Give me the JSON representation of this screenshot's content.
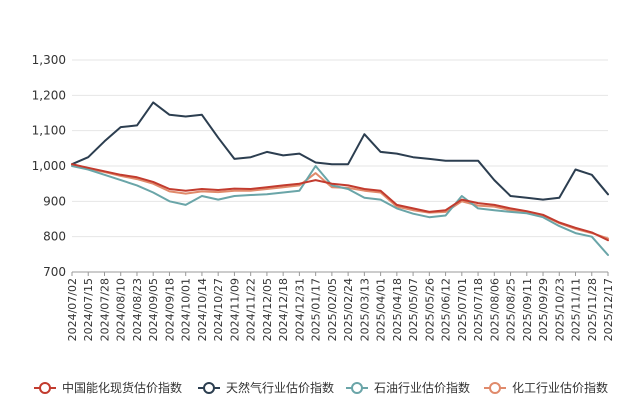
{
  "chart_data": {
    "type": "line",
    "title": "",
    "xlabel": "",
    "ylabel": "",
    "ylim": [
      700,
      1300
    ],
    "yticks": [
      "1,300",
      "1,200",
      "1,100",
      "1,000",
      "900",
      "800",
      "700"
    ],
    "ytick_values": [
      1300,
      1200,
      1100,
      1000,
      900,
      800,
      700
    ],
    "grid": "horizontal",
    "legend_position": "bottom",
    "x": [
      "2024/07/02",
      "2024/07/15",
      "2024/07/28",
      "2024/08/10",
      "2024/08/23",
      "2024/09/05",
      "2024/09/18",
      "2024/10/01",
      "2024/10/14",
      "2024/10/27",
      "2024/11/09",
      "2024/11/22",
      "2024/12/05",
      "2024/12/18",
      "2024/12/31",
      "2025/01/17",
      "2025/02/05",
      "2025/02/24",
      "2025/03/13",
      "2025/04/01",
      "2025/04/18",
      "2025/05/07",
      "2025/05/26",
      "2025/06/12",
      "2025/07/01",
      "2025/07/18",
      "2025/08/06",
      "2025/08/25",
      "2025/09/11",
      "2025/09/29",
      "2025/10/23",
      "2025/11/11",
      "2025/11/28",
      "2025/12/17"
    ],
    "series": [
      {
        "name": "中国能化现货估价指数",
        "color": "#c23b2e",
        "values": [
          1005,
          995,
          985,
          975,
          968,
          955,
          935,
          930,
          935,
          932,
          936,
          935,
          940,
          945,
          950,
          960,
          950,
          945,
          935,
          930,
          890,
          880,
          870,
          875,
          905,
          895,
          890,
          880,
          872,
          862,
          840,
          825,
          812,
          790
        ]
      },
      {
        "name": "天然气行业估价指数",
        "color": "#2c3e50",
        "values": [
          1005,
          1025,
          1070,
          1110,
          1115,
          1180,
          1145,
          1140,
          1145,
          1080,
          1020,
          1025,
          1040,
          1030,
          1035,
          1010,
          1005,
          1005,
          1090,
          1040,
          1035,
          1025,
          1020,
          1015,
          1015,
          1015,
          960,
          915,
          910,
          905,
          910,
          990,
          975,
          920
        ]
      },
      {
        "name": "石油行业估价指数",
        "color": "#6aa5a8",
        "values": [
          1000,
          990,
          975,
          960,
          945,
          925,
          900,
          890,
          915,
          905,
          915,
          918,
          920,
          925,
          930,
          1000,
          945,
          935,
          910,
          905,
          880,
          865,
          855,
          860,
          915,
          880,
          875,
          870,
          866,
          855,
          830,
          810,
          800,
          748
        ]
      },
      {
        "name": "化工行业估价指数",
        "color": "#e08a6b",
        "values": [
          1003,
          992,
          983,
          972,
          963,
          950,
          928,
          922,
          928,
          926,
          930,
          930,
          935,
          940,
          945,
          980,
          940,
          938,
          930,
          925,
          885,
          875,
          868,
          870,
          900,
          888,
          885,
          875,
          870,
          860,
          838,
          822,
          810,
          795
        ]
      }
    ]
  }
}
